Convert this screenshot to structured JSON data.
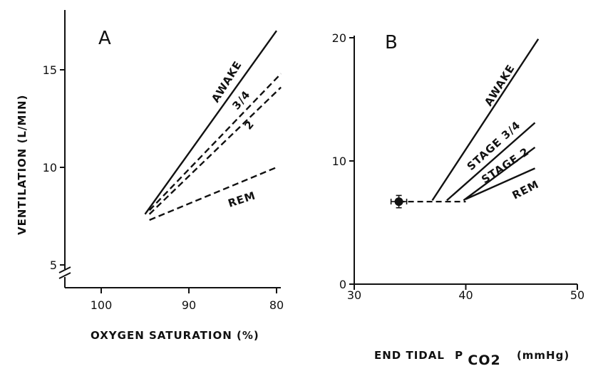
{
  "chart_data": [
    {
      "panel": "A",
      "type": "line",
      "title": "",
      "xlabel": "OXYGEN SATURATION (%)",
      "ylabel": "VENTILATION (L/MIN)",
      "xlim": [
        100,
        80
      ],
      "ylim": [
        5,
        17.5
      ],
      "xticks": [
        "100",
        "90",
        "80"
      ],
      "yticks": [
        "5",
        "10",
        "15"
      ],
      "axis_break": true,
      "series": [
        {
          "name": "AWAKE",
          "style": "solid",
          "x": [
            95,
            80
          ],
          "y": [
            7.6,
            17
          ]
        },
        {
          "name": "3/4",
          "style": "dashed",
          "x": [
            94.5,
            79.5
          ],
          "y": [
            7.8,
            14.8
          ]
        },
        {
          "name": "2",
          "style": "dashed",
          "x": [
            94.5,
            79.5
          ],
          "y": [
            7.6,
            14.1
          ]
        },
        {
          "name": "REM",
          "style": "dashed",
          "x": [
            94.5,
            80
          ],
          "y": [
            7.3,
            10
          ]
        }
      ]
    },
    {
      "panel": "B",
      "type": "line",
      "title": "",
      "xlabel": "END TIDAL",
      "xlabel_symbol": "P",
      "xlabel_subscript": "CO2",
      "xlabel_unit": "(mmHg)",
      "ylabel": "",
      "xlim": [
        30,
        50
      ],
      "ylim": [
        0,
        20
      ],
      "xticks": [
        "30",
        "40",
        "50"
      ],
      "yticks": [
        "0",
        "10",
        "20"
      ],
      "baseline": {
        "style": "dashed",
        "x": [
          34,
          40
        ],
        "y": [
          6.7,
          6.7
        ]
      },
      "point": {
        "x": 34,
        "y": 6.7,
        "xerr": 0.7,
        "yerr": 0.5
      },
      "series": [
        {
          "name": "AWAKE",
          "style": "solid",
          "x": [
            37,
            46.5
          ],
          "y": [
            6.8,
            19.9
          ]
        },
        {
          "name": "STAGE 3/4",
          "style": "solid",
          "x": [
            38.3,
            46.2
          ],
          "y": [
            6.8,
            13.1
          ]
        },
        {
          "name": "STAGE 2",
          "style": "solid",
          "x": [
            39.8,
            46.2
          ],
          "y": [
            6.8,
            11.1
          ]
        },
        {
          "name": "REM",
          "style": "solid",
          "x": [
            40,
            46.2
          ],
          "y": [
            6.9,
            9.4
          ]
        }
      ]
    }
  ]
}
